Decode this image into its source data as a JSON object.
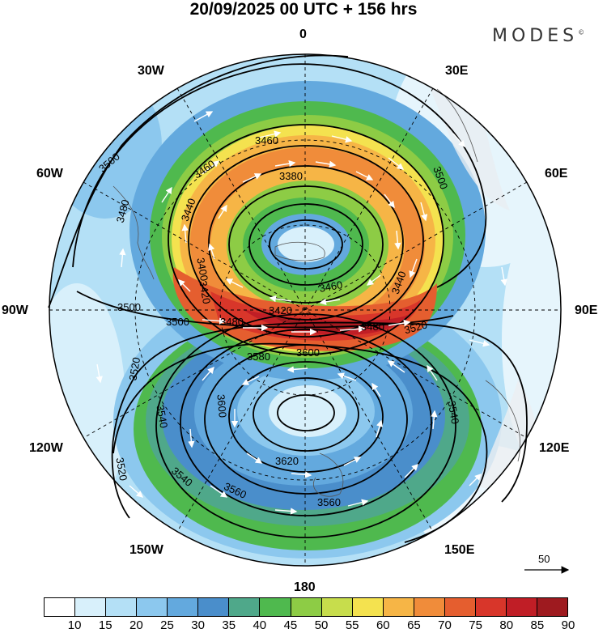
{
  "title": "20/09/2025  00 UTC  + 156 hrs",
  "brand": "MODES",
  "brand_mark": "©",
  "meridian_labels": {
    "n0": "0",
    "n30e": "30E",
    "n60e": "60E",
    "n90e": "90E",
    "n120e": "120E",
    "n150e": "150E",
    "n180": "180",
    "n150w": "150W",
    "n120w": "120W",
    "n90w": "90W",
    "n60w": "60W",
    "n30w": "30W"
  },
  "reference_vector": {
    "label": "50"
  },
  "contour_labels": {
    "c3380": "3380",
    "c3400": "3400",
    "c3420": "3420",
    "c3440a": "3440",
    "c3440b": "3440",
    "c3460a": "3460",
    "c3460b": "3460",
    "c3480a": "3480",
    "c3480b": "3480",
    "c3500a": "3500",
    "c3500b": "3500",
    "c3500c": "3500",
    "c3500d": "3500",
    "c3520a": "3520",
    "c3520b": "3520",
    "c3520c": "3520",
    "c3540a": "3540",
    "c3540b": "3540",
    "c3540c": "3540",
    "c3560a": "3560",
    "c3560b": "3560",
    "c3580": "3580",
    "c3600a": "3600",
    "c3600b": "3600",
    "c3620": "3620",
    "c3460c": "3460",
    "c3420b": "3420"
  },
  "colorbar": {
    "colors": [
      "#ffffff",
      "#d8f0fb",
      "#b4e0f6",
      "#8cc8ee",
      "#63a9de",
      "#4a8ecb",
      "#4fa88a",
      "#4fb94e",
      "#8dcc45",
      "#c7dd4c",
      "#f4e24f",
      "#f6b546",
      "#f08c3a",
      "#e55e2f",
      "#d8362a",
      "#c01e26",
      "#9e1a1f"
    ],
    "ticks": [
      "10",
      "15",
      "20",
      "25",
      "30",
      "35",
      "40",
      "45",
      "50",
      "55",
      "60",
      "65",
      "70",
      "75",
      "80",
      "85",
      "90"
    ]
  }
}
